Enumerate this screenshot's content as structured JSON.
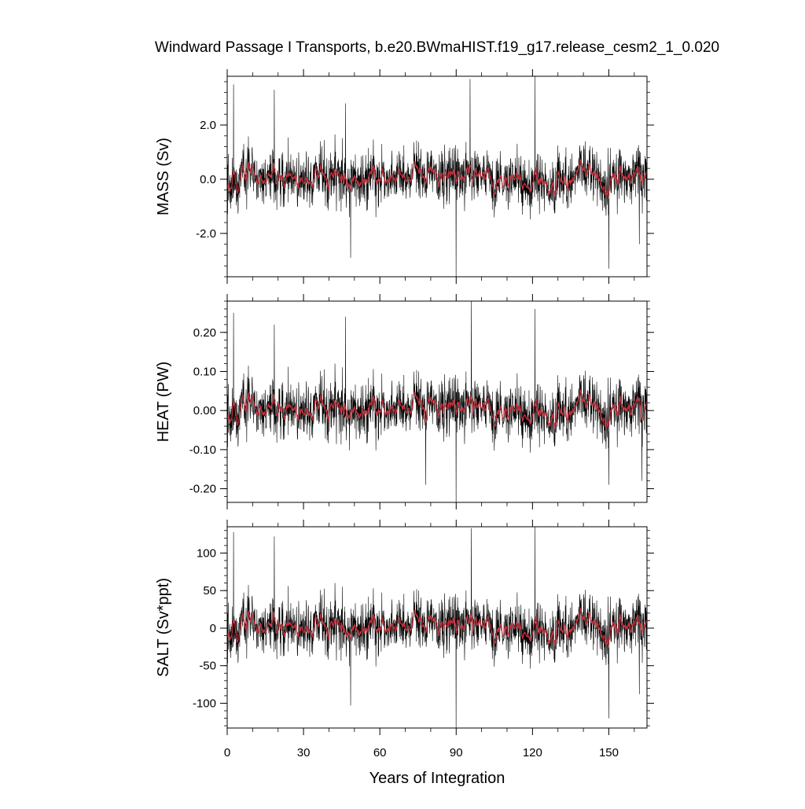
{
  "title": "Windward Passage I Transports, b.e20.BWmaHIST.f19_g17.release_cesm2_1_0.020",
  "colors": {
    "raw": "#000000",
    "smooth": "#c8303c",
    "frame": "#000000"
  },
  "chart_data": {
    "type": "line",
    "title": "Windward Passage I Transports, b.e20.BWmaHIST.f19_g17.release_cesm2_1_0.020",
    "xlabel": "Years of Integration",
    "xlim": [
      0,
      165
    ],
    "xticks": [
      0,
      30,
      60,
      90,
      120,
      150
    ],
    "xtick_labels": [
      "0",
      "30",
      "60",
      "90",
      "120",
      "150"
    ],
    "n_points": 1980,
    "grid": false,
    "series_style": "black monthly series with red smoothed overlay",
    "panels": [
      {
        "ylabel": "MASS (Sv)",
        "ylim": [
          -3.6,
          3.8
        ],
        "yticks": [
          -2.0,
          0.0,
          2.0
        ],
        "ytick_labels": [
          "-2.0",
          "0.0",
          "2.0"
        ],
        "std": 0.55,
        "spikes": [
          {
            "x": 2.5,
            "y": 3.5
          },
          {
            "x": 18.5,
            "y": 3.3
          },
          {
            "x": 46.5,
            "y": 2.8
          },
          {
            "x": 48.5,
            "y": -2.9
          },
          {
            "x": 90,
            "y": -3.6
          },
          {
            "x": 95.5,
            "y": 3.7
          },
          {
            "x": 121,
            "y": 3.8
          },
          {
            "x": 150,
            "y": -3.3
          },
          {
            "x": 162,
            "y": -2.4
          }
        ]
      },
      {
        "ylabel": "HEAT (PW)",
        "ylim": [
          -0.235,
          0.28
        ],
        "yticks": [
          -0.2,
          -0.1,
          0.0,
          0.1,
          0.2
        ],
        "ytick_labels": [
          "-0.20",
          "-0.10",
          "0.00",
          "0.10",
          "0.20"
        ],
        "std": 0.04,
        "spikes": [
          {
            "x": 2.5,
            "y": 0.25
          },
          {
            "x": 18.5,
            "y": 0.22
          },
          {
            "x": 46.5,
            "y": 0.24
          },
          {
            "x": 78,
            "y": -0.19
          },
          {
            "x": 90,
            "y": -0.235
          },
          {
            "x": 96,
            "y": 0.28
          },
          {
            "x": 121,
            "y": 0.26
          },
          {
            "x": 150,
            "y": -0.19
          },
          {
            "x": 163,
            "y": -0.18
          }
        ]
      },
      {
        "ylabel": "SALT (Sv*ppt)",
        "ylim": [
          -133,
          135
        ],
        "yticks": [
          -100,
          -50,
          0,
          50,
          100
        ],
        "ytick_labels": [
          "-100",
          "-50",
          "0",
          "50",
          "100"
        ],
        "std": 20,
        "spikes": [
          {
            "x": 2.5,
            "y": 128
          },
          {
            "x": 18.5,
            "y": 122
          },
          {
            "x": 48.5,
            "y": -103
          },
          {
            "x": 90,
            "y": -133
          },
          {
            "x": 96,
            "y": 133
          },
          {
            "x": 121,
            "y": 135
          },
          {
            "x": 150,
            "y": -120
          },
          {
            "x": 162,
            "y": -88
          }
        ]
      }
    ]
  }
}
